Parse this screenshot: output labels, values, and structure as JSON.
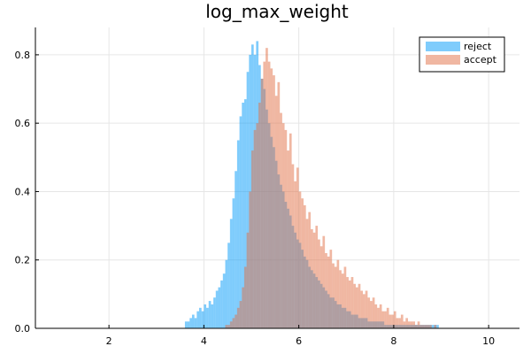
{
  "chart_data": {
    "type": "bar",
    "subtype": "histogram",
    "title": "log_max_weight",
    "xlabel": "",
    "ylabel": "",
    "xlim": [
      0.45,
      10.65
    ],
    "ylim": [
      0,
      0.88
    ],
    "xticks": [
      2,
      4,
      6,
      8,
      10
    ],
    "yticks": [
      0.0,
      0.2,
      0.4,
      0.6,
      0.8
    ],
    "xtick_labels": [
      "2",
      "4",
      "6",
      "8",
      "10"
    ],
    "ytick_labels": [
      "0.0",
      "0.2",
      "0.4",
      "0.6",
      "0.8"
    ],
    "grid": true,
    "legend_position": "top-right",
    "bin_start": 3.6,
    "bin_width": 0.05,
    "series": [
      {
        "name": "reject",
        "color": "#009AFA",
        "values": [
          0.02,
          0.02,
          0.03,
          0.04,
          0.03,
          0.05,
          0.06,
          0.05,
          0.07,
          0.06,
          0.08,
          0.07,
          0.09,
          0.11,
          0.12,
          0.14,
          0.16,
          0.2,
          0.25,
          0.32,
          0.38,
          0.46,
          0.55,
          0.62,
          0.66,
          0.67,
          0.75,
          0.8,
          0.83,
          0.8,
          0.84,
          0.77,
          0.73,
          0.7,
          0.64,
          0.6,
          0.56,
          0.53,
          0.49,
          0.45,
          0.42,
          0.4,
          0.37,
          0.35,
          0.33,
          0.3,
          0.28,
          0.26,
          0.25,
          0.23,
          0.21,
          0.2,
          0.18,
          0.17,
          0.16,
          0.15,
          0.14,
          0.13,
          0.12,
          0.11,
          0.1,
          0.09,
          0.09,
          0.08,
          0.07,
          0.07,
          0.06,
          0.06,
          0.05,
          0.05,
          0.04,
          0.04,
          0.04,
          0.03,
          0.03,
          0.03,
          0.03,
          0.02,
          0.02,
          0.02,
          0.02,
          0.02,
          0.02,
          0.02,
          0.01,
          0.01,
          0.01,
          0.01,
          0.01,
          0.01,
          0.01,
          0.01,
          0.01,
          0.01,
          0.01,
          0.01,
          0.01,
          0.01,
          0.01,
          0.01,
          0.01,
          0.01,
          0.01,
          0.01,
          0.01,
          0.01,
          0.01
        ]
      },
      {
        "name": "accept",
        "color": "#E26F46",
        "values": [
          0.0,
          0.0,
          0.0,
          0.0,
          0.0,
          0.0,
          0.0,
          0.0,
          0.0,
          0.0,
          0.0,
          0.0,
          0.0,
          0.0,
          0.0,
          0.0,
          0.0,
          0.01,
          0.01,
          0.02,
          0.03,
          0.04,
          0.06,
          0.08,
          0.12,
          0.18,
          0.28,
          0.4,
          0.52,
          0.58,
          0.6,
          0.66,
          0.73,
          0.78,
          0.82,
          0.78,
          0.76,
          0.74,
          0.68,
          0.72,
          0.63,
          0.6,
          0.58,
          0.52,
          0.57,
          0.48,
          0.43,
          0.47,
          0.4,
          0.38,
          0.36,
          0.32,
          0.34,
          0.29,
          0.28,
          0.3,
          0.26,
          0.24,
          0.27,
          0.22,
          0.21,
          0.23,
          0.19,
          0.18,
          0.2,
          0.17,
          0.16,
          0.18,
          0.15,
          0.14,
          0.15,
          0.13,
          0.12,
          0.13,
          0.11,
          0.1,
          0.11,
          0.09,
          0.08,
          0.09,
          0.07,
          0.06,
          0.07,
          0.05,
          0.05,
          0.06,
          0.04,
          0.04,
          0.05,
          0.03,
          0.03,
          0.04,
          0.02,
          0.03,
          0.02,
          0.02,
          0.02,
          0.01,
          0.02,
          0.01,
          0.01,
          0.01,
          0.01,
          0.01,
          0.0,
          0.01,
          0.0
        ]
      }
    ]
  }
}
